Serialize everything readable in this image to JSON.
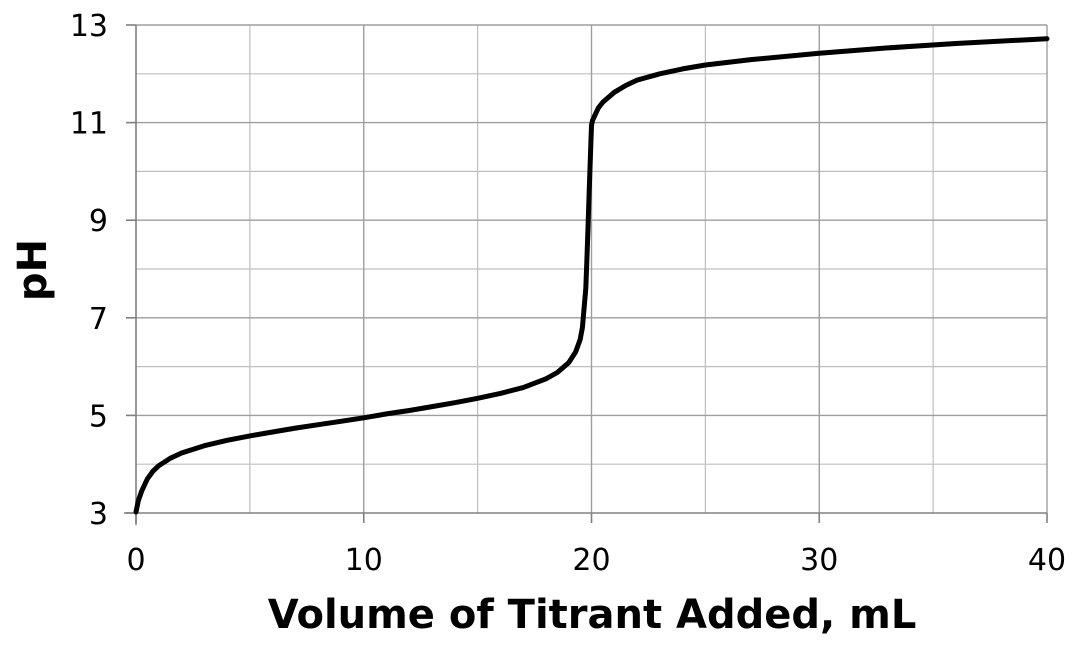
{
  "chart_data": {
    "type": "line",
    "title": "",
    "xlabel": "Volume of Titrant Added, mL",
    "ylabel": "pH",
    "xlim": [
      0,
      40
    ],
    "ylim": [
      3,
      13
    ],
    "x_ticks": [
      0,
      10,
      20,
      30,
      40
    ],
    "y_ticks": [
      3,
      5,
      7,
      9,
      11,
      13
    ],
    "x_tick_labels": [
      "0",
      "10",
      "20",
      "30",
      "40"
    ],
    "y_tick_labels": [
      "3",
      "5",
      "7",
      "9",
      "11",
      "13"
    ],
    "grid": true,
    "grid_minor_x": [
      5,
      15,
      25,
      35
    ],
    "grid_minor_y": [
      4,
      6,
      8,
      10,
      12
    ],
    "legend": "none",
    "colors": {
      "line": "#000000",
      "grid": "#bfbfbf",
      "axis": "#808080"
    },
    "series": [
      {
        "x": [
          0,
          0.1,
          0.25,
          0.5,
          0.75,
          1,
          1.5,
          2,
          3,
          4,
          5,
          6,
          7,
          8,
          9,
          10,
          11,
          12,
          13,
          14,
          15,
          16,
          17,
          18,
          18.5,
          19,
          19.3,
          19.5,
          19.6,
          19.75,
          19.8,
          19.85,
          19.9,
          19.95,
          20,
          20.05,
          20.1,
          20.3,
          20.5,
          21,
          21.5,
          22,
          23,
          24,
          25,
          27,
          30,
          33,
          36,
          40
        ],
        "y": [
          3.02,
          3.25,
          3.45,
          3.7,
          3.86,
          3.97,
          4.12,
          4.23,
          4.38,
          4.49,
          4.58,
          4.66,
          4.74,
          4.81,
          4.88,
          4.95,
          5.03,
          5.1,
          5.18,
          5.26,
          5.35,
          5.45,
          5.57,
          5.75,
          5.88,
          6.08,
          6.3,
          6.55,
          6.8,
          7.6,
          8.2,
          8.9,
          9.6,
          10.3,
          10.95,
          11.05,
          11.1,
          11.3,
          11.42,
          11.62,
          11.76,
          11.87,
          12.0,
          12.1,
          12.18,
          12.29,
          12.42,
          12.53,
          12.62,
          12.72
        ]
      }
    ]
  }
}
